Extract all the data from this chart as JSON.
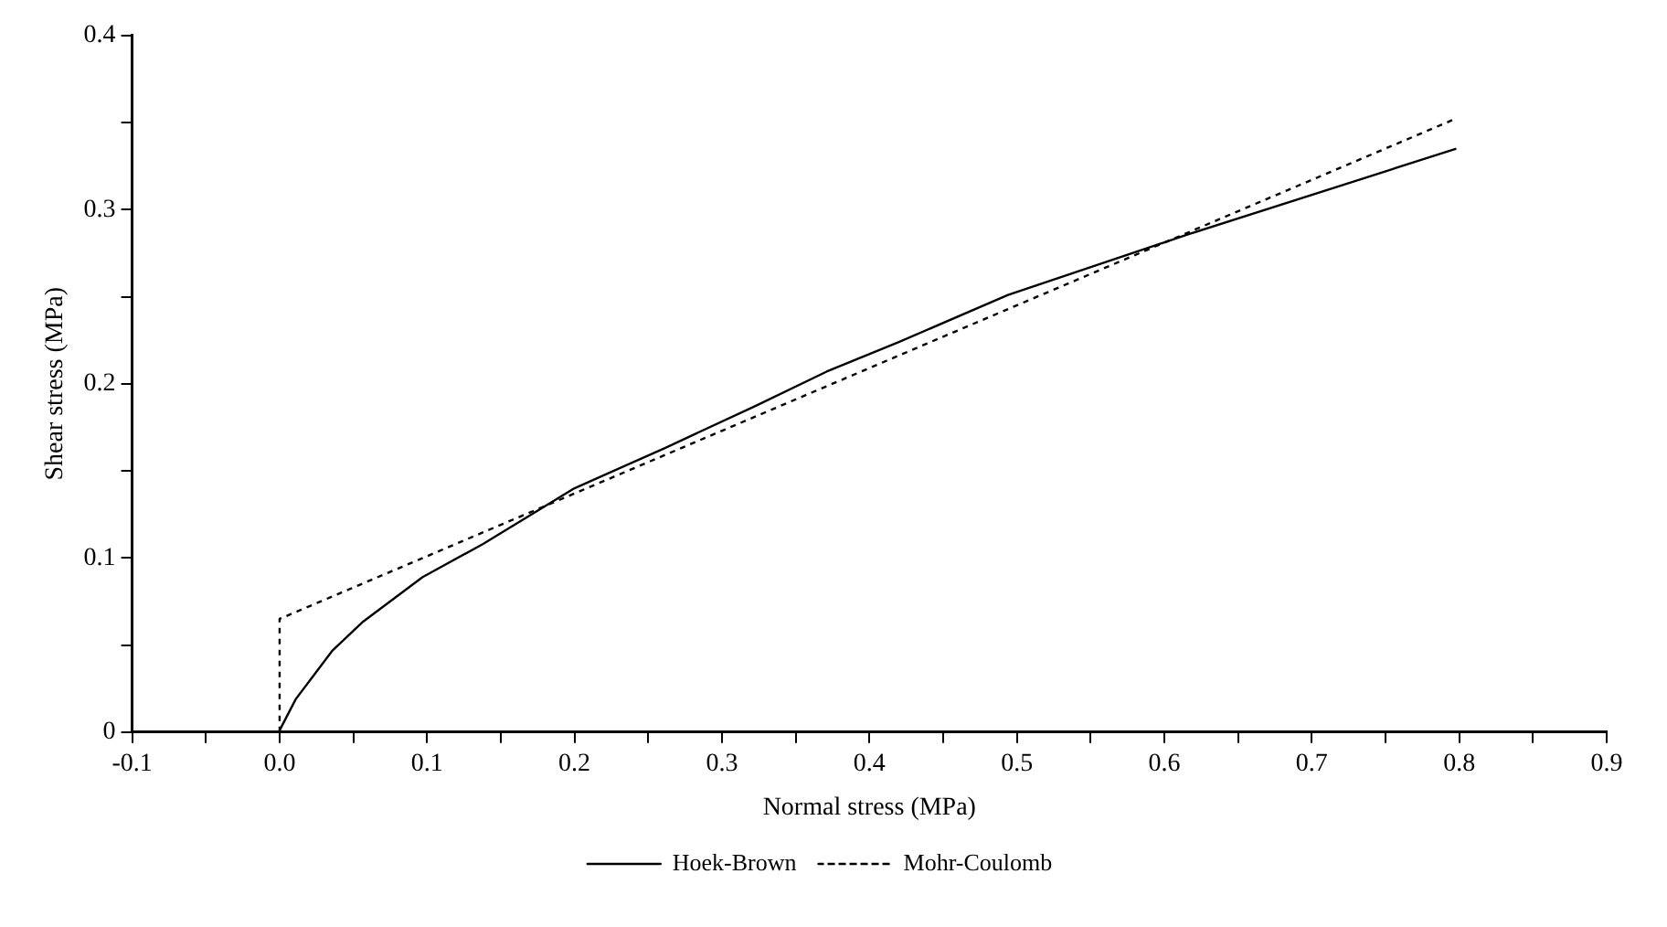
{
  "chart_data": {
    "type": "line",
    "xlabel": "Normal stress (MPa)",
    "ylabel": "Shear stress (MPa)",
    "xlim": [
      -0.1,
      0.9
    ],
    "xticks": [
      -0.1,
      {
        "value": -0.05,
        "label": null
      },
      "0.0",
      {
        "value": 0.05,
        "label": null
      },
      0.1,
      {
        "value": 0.15,
        "label": null
      },
      0.2,
      {
        "value": 0.25,
        "label": null
      },
      0.3,
      {
        "value": 0.35,
        "label": null
      },
      0.4,
      {
        "value": 0.45,
        "label": null
      },
      0.5,
      {
        "value": 0.55,
        "label": null
      },
      0.6,
      {
        "value": 0.65,
        "label": null
      },
      0.7,
      {
        "value": 0.75,
        "label": null
      },
      0.8,
      {
        "value": 0.85,
        "label": null
      },
      0.9
    ],
    "ylim": [
      0,
      0.4
    ],
    "yticks": [
      0,
      {
        "value": 0.05,
        "label": null
      },
      0.1,
      {
        "value": 0.15,
        "label": null
      },
      0.2,
      {
        "value": 0.25,
        "label": null
      },
      0.3,
      {
        "value": 0.35,
        "label": null
      },
      0.4
    ],
    "grid": false,
    "legend": "bottom",
    "marker": "none",
    "series": [
      {
        "name": "Hoek-Brown",
        "color": "#000000",
        "line_style": "solid",
        "x": [
          0,
          0.011,
          0.036,
          0.056,
          0.097,
          0.138,
          0.2,
          0.261,
          0.322,
          0.371,
          0.42,
          0.494,
          0.617,
          0.739,
          0.798
        ],
        "values": [
          0.001,
          0.019,
          0.047,
          0.063,
          0.089,
          0.108,
          0.14,
          0.163,
          0.187,
          0.207,
          0.224,
          0.251,
          0.286,
          0.319,
          0.335
        ]
      },
      {
        "name": "Mohr-Coulomb",
        "color": "#000000",
        "line_style": "dotted",
        "x": [
          0,
          0,
          0.797
        ],
        "values": [
          0,
          0.065,
          0.352
        ]
      }
    ]
  }
}
